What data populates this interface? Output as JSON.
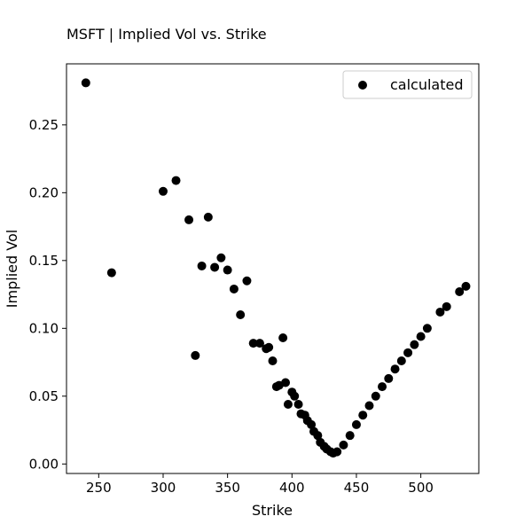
{
  "chart_data": {
    "type": "scatter",
    "title": "MSFT | Implied Vol vs. Strike",
    "xlabel": "Strike",
    "ylabel": "Implied Vol",
    "xlim": [
      225,
      545
    ],
    "ylim": [
      -0.007,
      0.295
    ],
    "xticks": [
      250,
      300,
      350,
      400,
      450,
      500
    ],
    "yticks": [
      0.0,
      0.05,
      0.1,
      0.15,
      0.2,
      0.25
    ],
    "xtick_labels": [
      "250",
      "300",
      "350",
      "400",
      "450",
      "500"
    ],
    "ytick_labels": [
      "0.00",
      "0.05",
      "0.10",
      "0.15",
      "0.20",
      "0.25"
    ],
    "grid": false,
    "legend_position": "top-right",
    "marker_color": "#000000",
    "series": [
      {
        "name": "calculated",
        "points": [
          [
            240,
            0.281
          ],
          [
            260,
            0.141
          ],
          [
            300,
            0.201
          ],
          [
            310,
            0.209
          ],
          [
            320,
            0.18
          ],
          [
            325,
            0.08
          ],
          [
            330,
            0.146
          ],
          [
            335,
            0.182
          ],
          [
            340,
            0.145
          ],
          [
            345,
            0.152
          ],
          [
            350,
            0.143
          ],
          [
            355,
            0.129
          ],
          [
            360,
            0.11
          ],
          [
            365,
            0.135
          ],
          [
            370,
            0.089
          ],
          [
            375,
            0.089
          ],
          [
            380,
            0.085
          ],
          [
            382,
            0.086
          ],
          [
            385,
            0.076
          ],
          [
            388,
            0.057
          ],
          [
            390,
            0.058
          ],
          [
            393,
            0.093
          ],
          [
            395,
            0.06
          ],
          [
            397,
            0.044
          ],
          [
            400,
            0.053
          ],
          [
            402,
            0.05
          ],
          [
            405,
            0.044
          ],
          [
            407,
            0.037
          ],
          [
            410,
            0.036
          ],
          [
            412,
            0.032
          ],
          [
            415,
            0.029
          ],
          [
            417,
            0.024
          ],
          [
            420,
            0.021
          ],
          [
            422,
            0.016
          ],
          [
            425,
            0.013
          ],
          [
            427,
            0.011
          ],
          [
            430,
            0.009
          ],
          [
            432,
            0.008
          ],
          [
            435,
            0.009
          ],
          [
            440,
            0.014
          ],
          [
            445,
            0.021
          ],
          [
            450,
            0.029
          ],
          [
            455,
            0.036
          ],
          [
            460,
            0.043
          ],
          [
            465,
            0.05
          ],
          [
            470,
            0.057
          ],
          [
            475,
            0.063
          ],
          [
            480,
            0.07
          ],
          [
            485,
            0.076
          ],
          [
            490,
            0.082
          ],
          [
            495,
            0.088
          ],
          [
            500,
            0.094
          ],
          [
            505,
            0.1
          ],
          [
            515,
            0.112
          ],
          [
            520,
            0.116
          ],
          [
            530,
            0.127
          ],
          [
            535,
            0.131
          ]
        ]
      }
    ]
  }
}
